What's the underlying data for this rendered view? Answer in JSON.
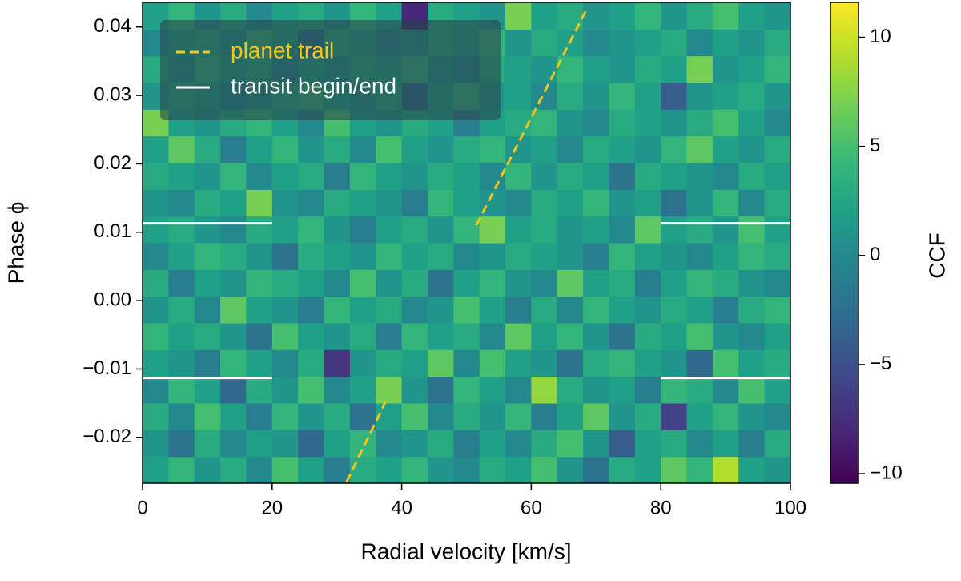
{
  "chart_data": {
    "type": "heatmap",
    "xlabel": "Radial velocity [km/s]",
    "ylabel": "Phase ϕ",
    "colorbar_label": "CCF",
    "xlim": [
      0,
      100
    ],
    "ylim": [
      -0.0267,
      0.0436
    ],
    "xticks": [
      0,
      20,
      40,
      60,
      80,
      100
    ],
    "yticks": [
      {
        "value": -0.02,
        "label": "−0.02"
      },
      {
        "value": -0.01,
        "label": "−0.01"
      },
      {
        "value": 0,
        "label": "0.00"
      },
      0.01,
      0.02,
      0.03,
      0.04
    ],
    "clim": [
      -10.44,
      11.6
    ],
    "cticks": [
      {
        "value": -10,
        "label": "−10"
      },
      {
        "value": -5,
        "label": "−5"
      },
      0,
      5,
      10
    ],
    "cmap": [
      "#440154",
      "#482878",
      "#3e4989",
      "#31688e",
      "#26828e",
      "#1f9e89",
      "#35b779",
      "#6ece58",
      "#b5de2b",
      "#fde725"
    ],
    "z": [
      [
        2,
        4,
        1,
        3,
        0,
        5,
        2,
        -1,
        3,
        2,
        4,
        1,
        0,
        3,
        2,
        5,
        1,
        -2,
        3,
        2,
        6,
        4,
        9,
        2,
        1
      ],
      [
        1,
        -2,
        3,
        0,
        2,
        1,
        -3,
        2,
        4,
        0,
        1,
        3,
        -1,
        2,
        0,
        3,
        5,
        1,
        -4,
        2,
        3,
        0,
        2,
        -1,
        3
      ],
      [
        3,
        0,
        5,
        2,
        -1,
        4,
        1,
        3,
        -2,
        2,
        5,
        0,
        3,
        1,
        4,
        -1,
        2,
        6,
        1,
        3,
        -6,
        2,
        4,
        1,
        0
      ],
      [
        0,
        4,
        2,
        -3,
        3,
        1,
        5,
        0,
        2,
        7,
        1,
        -2,
        4,
        2,
        0,
        8,
        3,
        1,
        2,
        -1,
        4,
        3,
        0,
        5,
        2
      ],
      [
        2,
        1,
        -1,
        4,
        2,
        0,
        3,
        -7,
        1,
        3,
        2,
        6,
        0,
        5,
        2,
        1,
        -2,
        3,
        4,
        2,
        1,
        -3,
        5,
        2,
        3
      ],
      [
        4,
        2,
        3,
        1,
        -2,
        5,
        2,
        1,
        3,
        -1,
        4,
        2,
        3,
        0,
        6,
        2,
        4,
        1,
        -2,
        3,
        2,
        5,
        1,
        0,
        2
      ],
      [
        1,
        3,
        0,
        6,
        2,
        1,
        -1,
        4,
        2,
        3,
        0,
        1,
        5,
        2,
        -1,
        3,
        0,
        4,
        2,
        1,
        3,
        2,
        -1,
        3,
        4
      ],
      [
        3,
        -1,
        2,
        1,
        4,
        3,
        2,
        0,
        5,
        1,
        3,
        -2,
        2,
        4,
        1,
        0,
        6,
        2,
        3,
        -1,
        2,
        4,
        3,
        1,
        0
      ],
      [
        0,
        2,
        4,
        3,
        1,
        -2,
        3,
        2,
        1,
        4,
        2,
        3,
        0,
        1,
        3,
        2,
        1,
        -1,
        4,
        2,
        1,
        0,
        2,
        4,
        3
      ],
      [
        2,
        3,
        1,
        0,
        3,
        2,
        4,
        1,
        -1,
        2,
        3,
        1,
        4,
        7,
        2,
        3,
        1,
        2,
        0,
        6,
        2,
        3,
        1,
        5,
        2
      ],
      [
        1,
        0,
        3,
        2,
        7,
        1,
        0,
        3,
        2,
        1,
        -1,
        4,
        2,
        1,
        0,
        3,
        2,
        4,
        1,
        2,
        -2,
        1,
        4,
        0,
        3
      ],
      [
        3,
        2,
        1,
        4,
        0,
        2,
        3,
        -1,
        4,
        2,
        1,
        3,
        2,
        0,
        4,
        1,
        3,
        2,
        -2,
        3,
        2,
        1,
        0,
        3,
        2
      ],
      [
        2,
        6,
        3,
        -1,
        2,
        4,
        1,
        3,
        0,
        5,
        2,
        1,
        3,
        4,
        1,
        2,
        0,
        3,
        2,
        1,
        4,
        6,
        2,
        1,
        3
      ],
      [
        7,
        2,
        1,
        3,
        4,
        2,
        0,
        5,
        2,
        1,
        3,
        2,
        -1,
        2,
        3,
        4,
        1,
        0,
        3,
        2,
        1,
        3,
        5,
        2,
        0
      ],
      [
        1,
        3,
        2,
        0,
        1,
        3,
        4,
        2,
        1,
        3,
        -3,
        2,
        4,
        1,
        2,
        0,
        3,
        1,
        4,
        2,
        -4,
        1,
        2,
        3,
        1
      ],
      [
        3,
        1,
        4,
        2,
        3,
        0,
        2,
        1,
        3,
        2,
        4,
        1,
        0,
        3,
        2,
        1,
        4,
        2,
        1,
        3,
        2,
        7,
        1,
        2,
        4
      ],
      [
        0,
        2,
        3,
        1,
        4,
        2,
        -2,
        3,
        2,
        0,
        1,
        3,
        2,
        4,
        1,
        3,
        2,
        0,
        1,
        2,
        3,
        0,
        2,
        1,
        3
      ],
      [
        2,
        4,
        1,
        3,
        0,
        2,
        3,
        1,
        4,
        2,
        -8,
        3,
        2,
        1,
        7,
        2,
        3,
        1,
        2,
        4,
        1,
        3,
        5,
        2,
        1
      ]
    ],
    "series": [
      {
        "name": "planet trail",
        "color": "#f5c518",
        "dashed": true,
        "x": [
          31.5,
          37.5,
          null,
          51.5,
          68.5
        ],
        "y": [
          -0.0265,
          -0.0148,
          null,
          0.011,
          0.0425
        ]
      },
      {
        "name": "transit begin/end",
        "color": "#ffffff",
        "dashed": false,
        "x": [
          0,
          20,
          null,
          80,
          100,
          null,
          0,
          20,
          null,
          80,
          100
        ],
        "y": [
          0.0113,
          0.0113,
          null,
          0.0113,
          0.0113,
          null,
          -0.0113,
          -0.0113,
          null,
          -0.0113,
          -0.0113
        ]
      }
    ]
  }
}
